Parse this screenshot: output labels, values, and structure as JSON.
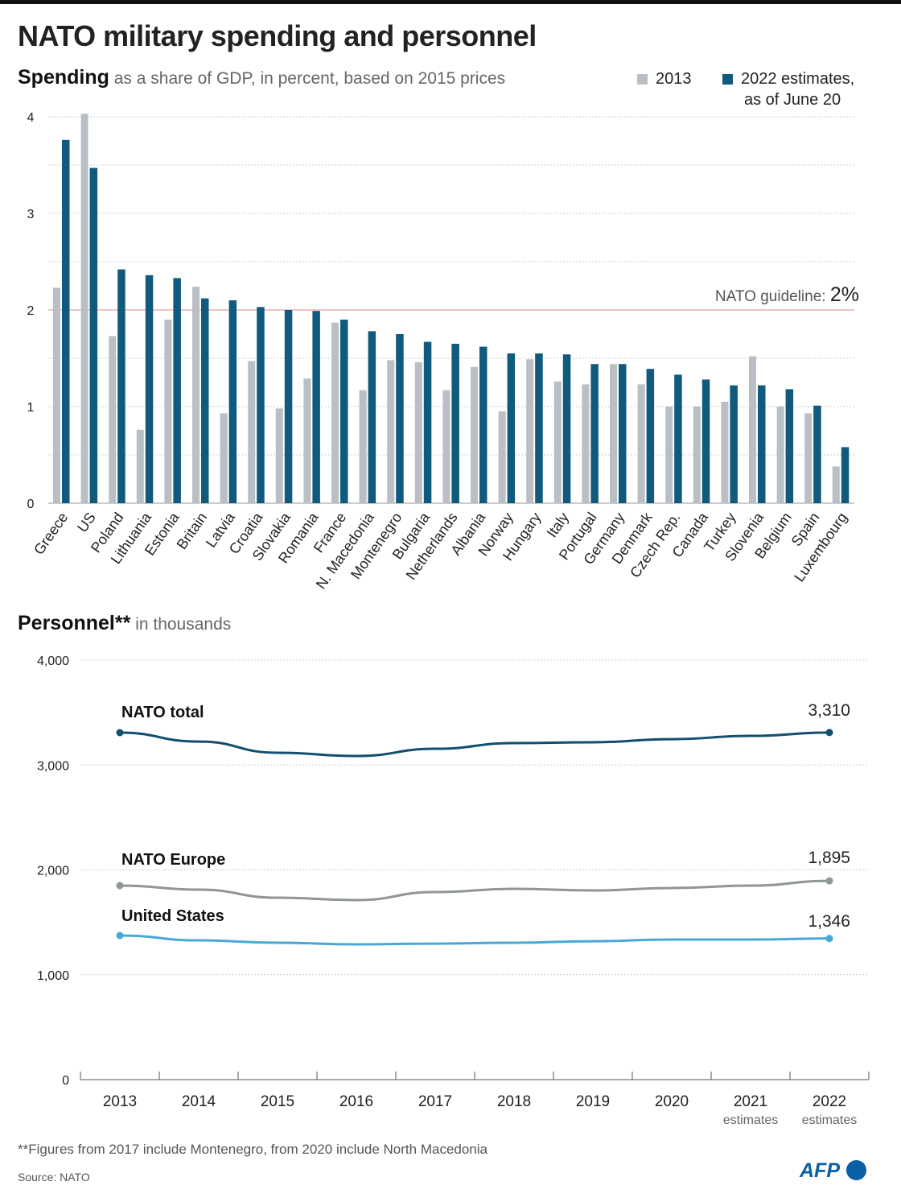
{
  "title": "NATO military spending and personnel",
  "colors": {
    "y2013": "#b9bfc4",
    "y2022": "#0f5a7d",
    "guideline": "#e08a8a",
    "nato_total": "#124f6f",
    "nato_europe": "#8f9598",
    "united_states": "#4aa8d8",
    "afp": "#0b5fa5"
  },
  "chart_data": [
    {
      "type": "bar",
      "subtitle_bold": "Spending",
      "subtitle": "as a share of GDP, in percent, based on 2015 prices",
      "ylim": [
        0,
        4
      ],
      "yticks": [
        "0",
        "1",
        "2",
        "3",
        "4"
      ],
      "grid": true,
      "legend_position": "top-right",
      "guideline": {
        "value": 2,
        "label": "NATO guideline:",
        "value_label": "2%"
      },
      "categories": [
        "Greece",
        "US",
        "Poland",
        "Lithuania",
        "Estonia",
        "Britain",
        "Latvia",
        "Croatia",
        "Slovakia",
        "Romania",
        "France",
        "N. Macedonia",
        "Montenegro",
        "Bulgaria",
        "Netherlands",
        "Albania",
        "Norway",
        "Hungary",
        "Italy",
        "Portugal",
        "Germany",
        "Denmark",
        "Czech Rep.",
        "Canada",
        "Turkey",
        "Slovenia",
        "Belgium",
        "Spain",
        "Luxembourg"
      ],
      "series": [
        {
          "name": "2013",
          "values": [
            2.23,
            4.03,
            1.73,
            0.76,
            1.9,
            2.24,
            0.93,
            1.47,
            0.98,
            1.29,
            1.87,
            1.17,
            1.48,
            1.46,
            1.17,
            1.41,
            0.95,
            1.49,
            1.26,
            1.23,
            1.44,
            1.23,
            1.0,
            1.0,
            1.05,
            1.52,
            1.0,
            0.93,
            0.38
          ]
        },
        {
          "name": "2022 estimates,",
          "name_line2": "as of June 20",
          "values": [
            3.76,
            3.47,
            2.42,
            2.36,
            2.33,
            2.12,
            2.1,
            2.03,
            2.0,
            1.99,
            1.9,
            1.78,
            1.75,
            1.67,
            1.65,
            1.62,
            1.55,
            1.55,
            1.54,
            1.44,
            1.44,
            1.39,
            1.33,
            1.28,
            1.22,
            1.22,
            1.18,
            1.01,
            0.58
          ]
        }
      ]
    },
    {
      "type": "line",
      "subtitle_bold": "Personnel**",
      "subtitle": "in thousands",
      "ylim": [
        0,
        4000
      ],
      "yticks": [
        "0",
        "1,000",
        "2,000",
        "3,000",
        "4,000"
      ],
      "grid": true,
      "x": [
        "2013",
        "2014",
        "2015",
        "2016",
        "2017",
        "2018",
        "2019",
        "2020",
        "2021",
        "2022"
      ],
      "x_sublabels": [
        "",
        "",
        "",
        "",
        "",
        "",
        "",
        "",
        "estimates",
        "estimates"
      ],
      "series": [
        {
          "name": "NATO total",
          "end_label": "3,310",
          "values": [
            3309,
            3224,
            3117,
            3086,
            3155,
            3209,
            3217,
            3247,
            3278,
            3310
          ]
        },
        {
          "name": "NATO Europe",
          "end_label": "1,895",
          "values": [
            1850,
            1812,
            1735,
            1712,
            1789,
            1820,
            1804,
            1827,
            1850,
            1895
          ]
        },
        {
          "name": "United States",
          "end_label": "1,346",
          "values": [
            1374,
            1328,
            1305,
            1290,
            1297,
            1305,
            1320,
            1336,
            1336,
            1346
          ]
        }
      ]
    }
  ],
  "footnote": "**Figures from 2017 include Montenegro, from 2020 include North Macedonia",
  "source": "Source: NATO",
  "logo": "AFP"
}
